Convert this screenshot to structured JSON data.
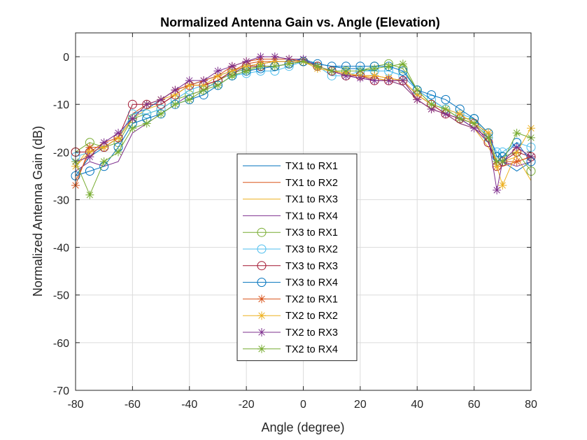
{
  "chart_data": {
    "type": "line",
    "title": "Normalized Antenna Gain vs. Angle (Elevation)",
    "xlabel": "Angle (degree)",
    "ylabel": "Normalized Antenna Gain (dB)",
    "xlim": [
      -80,
      80
    ],
    "ylim": [
      -70,
      5
    ],
    "xticks": [
      -80,
      -60,
      -40,
      -20,
      0,
      20,
      40,
      60,
      80
    ],
    "yticks": [
      0,
      -10,
      -20,
      -30,
      -40,
      -50,
      -60,
      -70
    ],
    "grid": true,
    "legend_position": "center",
    "x": [
      -80,
      -75,
      -70,
      -65,
      -60,
      -55,
      -50,
      -45,
      -40,
      -35,
      -30,
      -25,
      -20,
      -15,
      -10,
      -5,
      0,
      5,
      10,
      15,
      20,
      25,
      30,
      35,
      40,
      45,
      50,
      55,
      60,
      65,
      68,
      70,
      75,
      80
    ],
    "series": [
      {
        "name": "TX1 to RX1",
        "color": "#0072BD",
        "marker": "none",
        "values": [
          -25,
          -21,
          -19,
          -17,
          -12,
          -11,
          -9,
          -7,
          -6,
          -5,
          -4,
          -3,
          -2,
          -1.5,
          -1,
          -1,
          -0.5,
          -1.5,
          -2,
          -2.5,
          -2.5,
          -3,
          -3,
          -4,
          -7,
          -9,
          -11,
          -13,
          -15,
          -18,
          -22,
          -22,
          -24,
          -22
        ]
      },
      {
        "name": "TX1 to RX2",
        "color": "#D95319",
        "marker": "none",
        "values": [
          -26,
          -20,
          -18,
          -17,
          -12,
          -10,
          -9,
          -7,
          -6,
          -6,
          -5,
          -3,
          -1.5,
          -1,
          -1,
          -1,
          -1,
          -2,
          -3,
          -4,
          -4,
          -4.5,
          -5,
          -5,
          -8,
          -10,
          -12,
          -14,
          -15,
          -18,
          -23,
          -23,
          -22,
          -21
        ]
      },
      {
        "name": "TX1 to RX3",
        "color": "#EDB120",
        "marker": "none",
        "values": [
          -23,
          -19,
          -19,
          -17,
          -13,
          -11,
          -10,
          -8,
          -6,
          -6,
          -5,
          -3,
          -2,
          -1.5,
          -1,
          -1,
          -1,
          -2.5,
          -3,
          -4,
          -4,
          -4.5,
          -5,
          -6,
          -9,
          -11,
          -12,
          -14,
          -15,
          -19,
          -22,
          -22,
          -21,
          -26
        ]
      },
      {
        "name": "TX1 to RX4",
        "color": "#7E2F8E",
        "marker": "none",
        "values": [
          -24,
          -22,
          -23,
          -22,
          -16,
          -14,
          -12,
          -10,
          -8,
          -7,
          -5,
          -3.5,
          -2,
          -1.5,
          -1,
          -1,
          -1,
          -2,
          -3,
          -4,
          -4.5,
          -5,
          -5,
          -6,
          -9,
          -11,
          -12,
          -14,
          -15,
          -18,
          -22,
          -22,
          -23,
          -22
        ]
      },
      {
        "name": "TX3 to RX1",
        "color": "#77AC30",
        "marker": "circle",
        "values": [
          -20,
          -18,
          -19,
          -18,
          -13,
          -12,
          -11,
          -9,
          -8,
          -7,
          -5,
          -3.5,
          -2.5,
          -2,
          -2,
          -1.5,
          -1,
          -2,
          -3,
          -3,
          -3,
          -2,
          -1.5,
          -2.5,
          -7,
          -10,
          -11,
          -13,
          -13,
          -16,
          -21,
          -21,
          -20,
          -24
        ]
      },
      {
        "name": "TX3 to RX2",
        "color": "#4DBEEE",
        "marker": "circle",
        "values": [
          -21,
          -20,
          -19,
          -17,
          -12,
          -12,
          -11,
          -9,
          -7,
          -6,
          -6,
          -4,
          -3.5,
          -3,
          -3,
          -2,
          -1,
          -2,
          -4,
          -4,
          -3,
          -3,
          -3,
          -4,
          -7,
          -9,
          -11,
          -12,
          -13,
          -17,
          -20,
          -20,
          -18,
          -19
        ]
      },
      {
        "name": "TX3 to RX3",
        "color": "#A2142F",
        "marker": "circle",
        "values": [
          -20,
          -20,
          -19,
          -17,
          -10,
          -10,
          -10,
          -8,
          -6,
          -6,
          -5,
          -3,
          -2,
          -2,
          -2,
          -1.5,
          -1,
          -2,
          -3,
          -4,
          -4,
          -5,
          -5,
          -5,
          -8,
          -10,
          -12,
          -13,
          -14,
          -18,
          -23,
          -22,
          -20,
          -21
        ]
      },
      {
        "name": "TX3 to RX4",
        "color": "#0072BD",
        "marker": "circle",
        "values": [
          -25,
          -24,
          -23,
          -19,
          -14,
          -13,
          -12,
          -10,
          -9,
          -8,
          -6,
          -4,
          -3,
          -2.5,
          -2,
          -1.5,
          -1,
          -1.5,
          -2,
          -2,
          -2,
          -2,
          -2,
          -3,
          -7,
          -8,
          -9,
          -11,
          -13,
          -16,
          -21,
          -21,
          -18,
          -22
        ]
      },
      {
        "name": "TX2 to RX1",
        "color": "#D95319",
        "marker": "star",
        "values": [
          -27,
          -19,
          -19,
          -17,
          -13,
          -10,
          -9,
          -7,
          -6,
          -5,
          -4,
          -2,
          -1,
          -0.5,
          -0.5,
          -0.5,
          -1,
          -2,
          -3,
          -3.5,
          -4,
          -4,
          -4.5,
          -5,
          -9,
          -11,
          -12,
          -13,
          -14,
          -16,
          -23,
          -22,
          -22,
          -21
        ]
      },
      {
        "name": "TX2 to RX2",
        "color": "#EDB120",
        "marker": "star",
        "values": [
          -23,
          -20,
          -19,
          -17,
          -13,
          -10,
          -9,
          -8,
          -6,
          -6,
          -4,
          -3,
          -2,
          -1.5,
          -1,
          -1,
          -1,
          -2.5,
          -3,
          -3.5,
          -4,
          -4,
          -4.5,
          -5,
          -8,
          -10,
          -11,
          -12,
          -14,
          -16,
          -23,
          -27,
          -20,
          -15
        ]
      },
      {
        "name": "TX2 to RX3",
        "color": "#7E2F8E",
        "marker": "star",
        "values": [
          -22,
          -21,
          -18,
          -16,
          -13,
          -10,
          -9,
          -7,
          -5,
          -5,
          -3,
          -2,
          -1,
          0,
          0,
          -0.5,
          -0.5,
          -2,
          -3,
          -4,
          -4.5,
          -5,
          -5,
          -5,
          -9,
          -11,
          -12,
          -13,
          -15,
          -17,
          -28,
          -22,
          -19,
          -21
        ]
      },
      {
        "name": "TX2 to RX4",
        "color": "#77AC30",
        "marker": "star",
        "values": [
          -22,
          -29,
          -22,
          -20,
          -15,
          -14,
          -12,
          -10,
          -9,
          -7,
          -6,
          -4,
          -3,
          -2,
          -2,
          -1.5,
          -1,
          -2,
          -3,
          -3,
          -3,
          -2.5,
          -2,
          -1.5,
          -7,
          -10,
          -11,
          -13,
          -14,
          -17,
          -22,
          -22,
          -16,
          -17
        ]
      }
    ]
  }
}
